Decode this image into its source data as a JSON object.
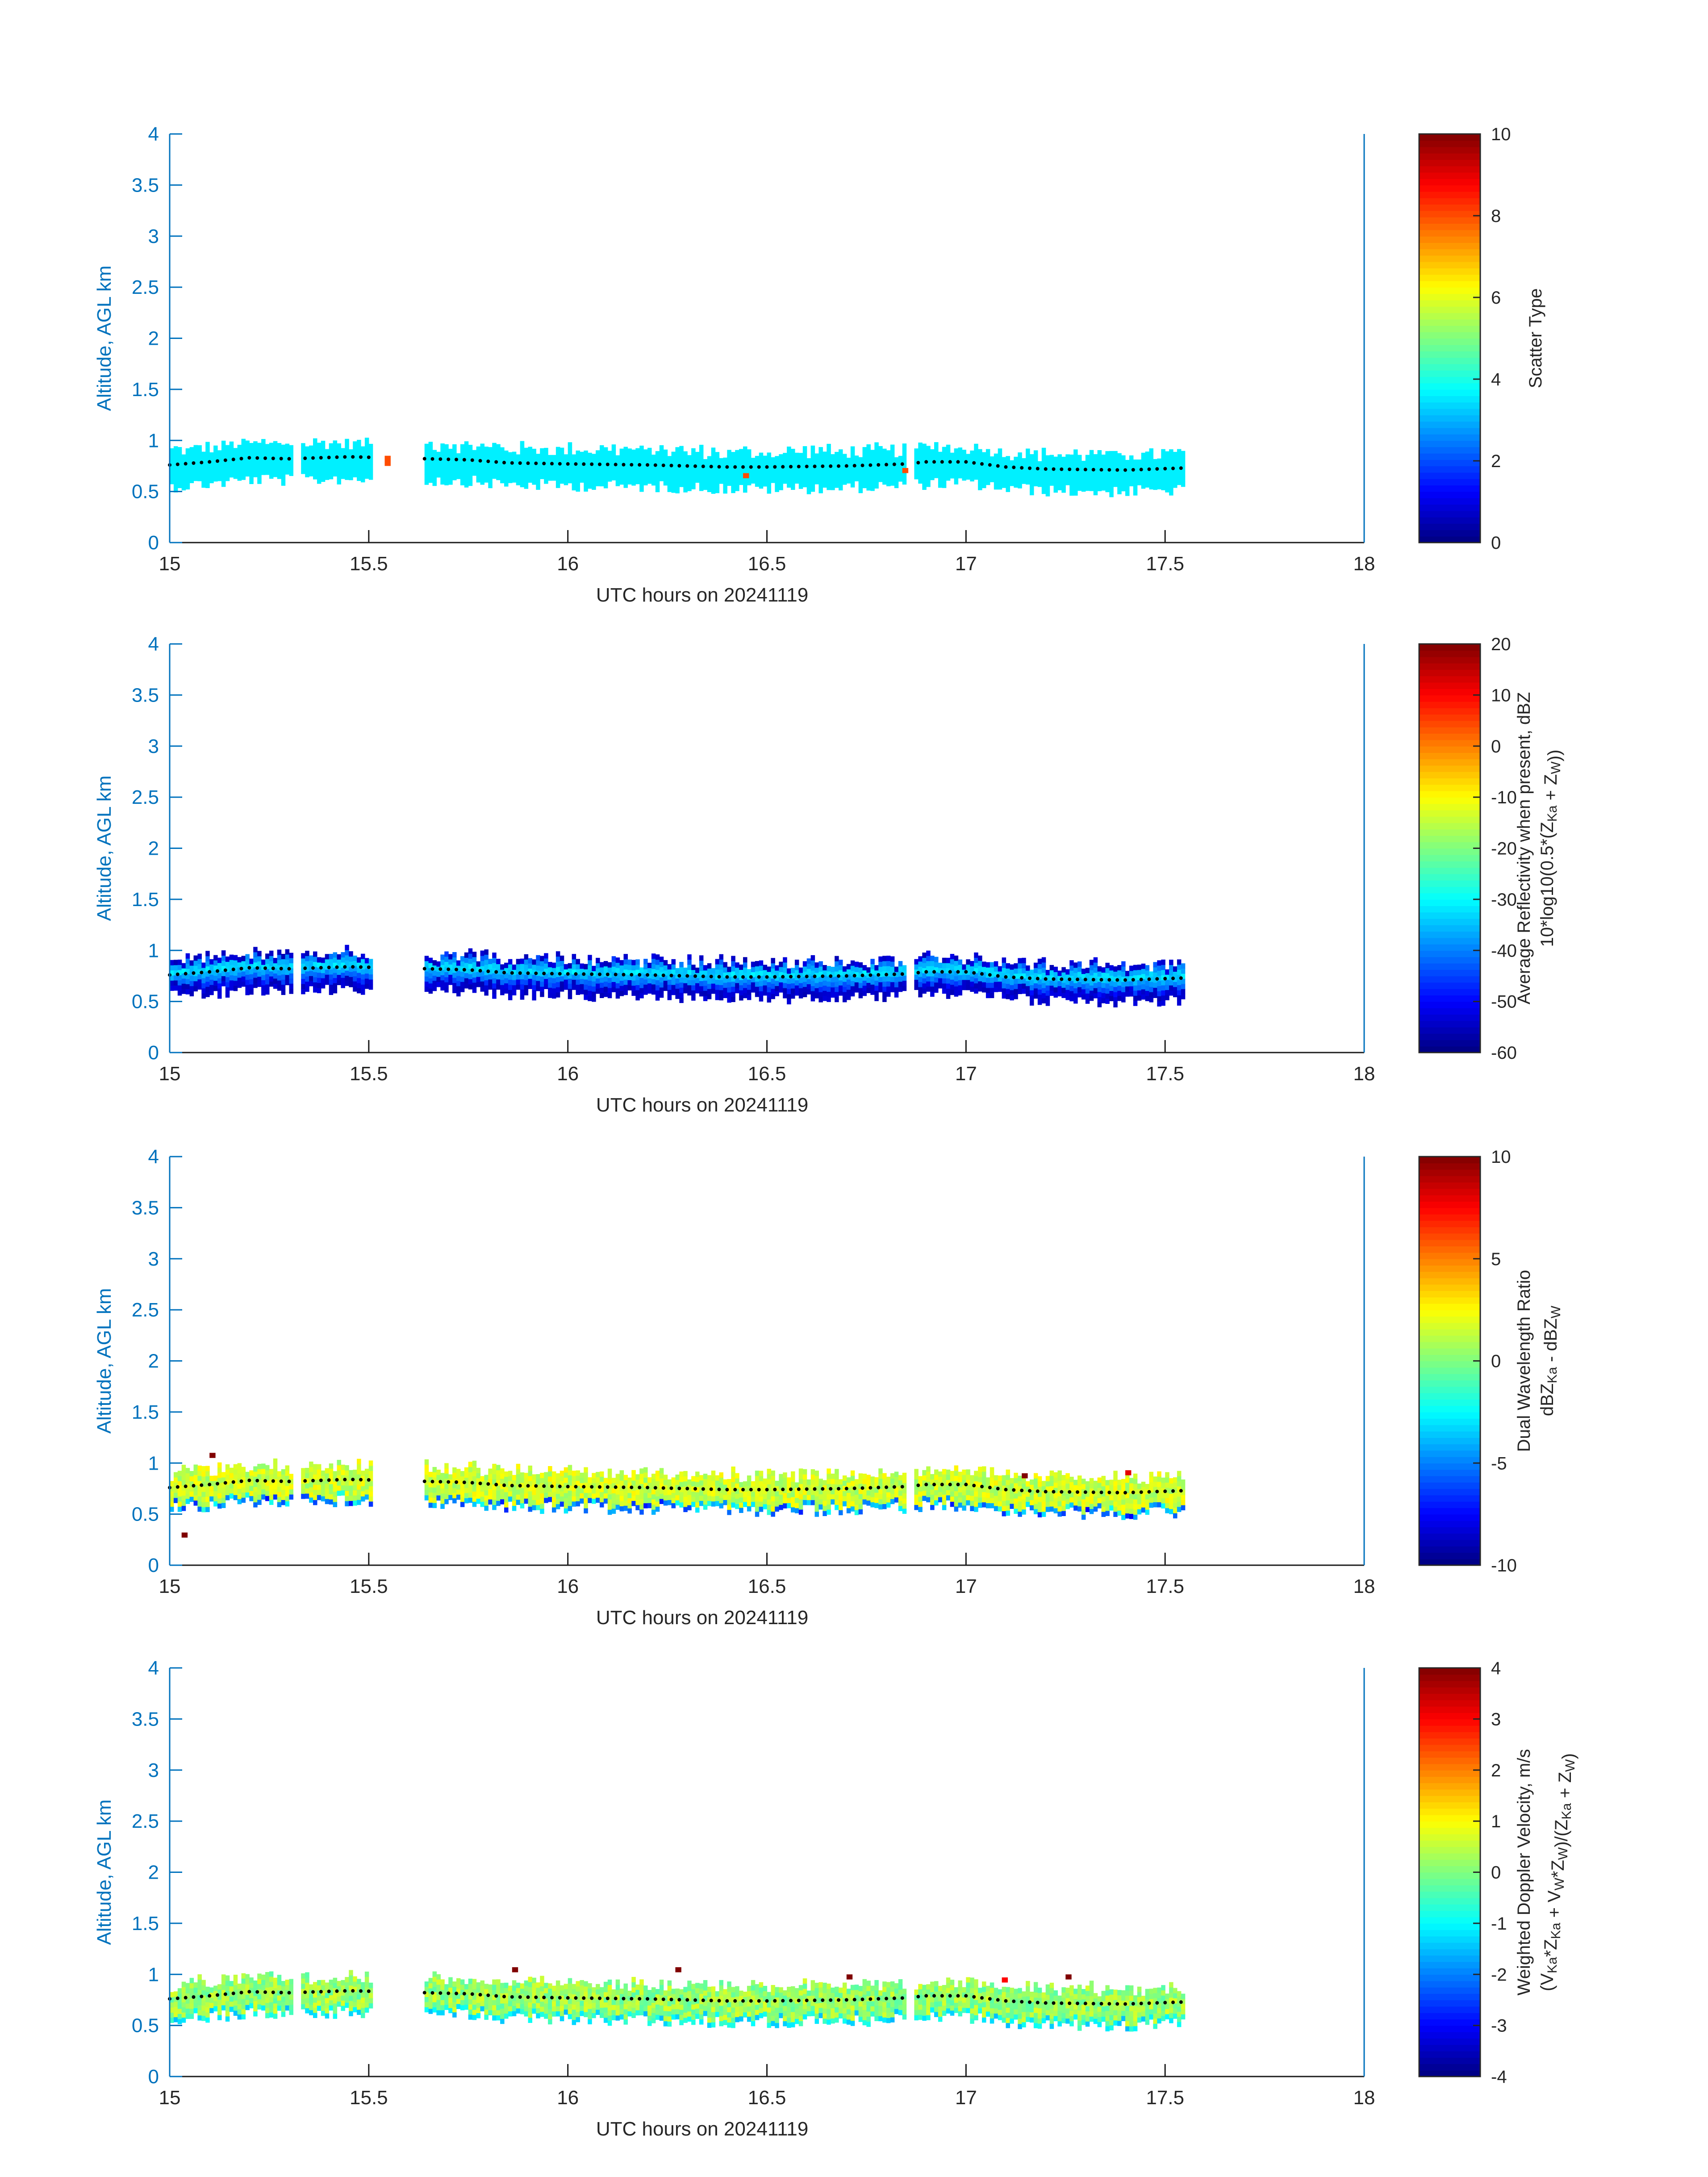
{
  "chart_data": [
    {
      "type": "heatmap",
      "xlabel": "UTC hours on 20241119",
      "ylabel": "Altitude, AGL km",
      "xlim": [
        15,
        18
      ],
      "ylim": [
        0,
        4
      ],
      "xticks": [
        "15",
        "15.5",
        "16",
        "16.5",
        "17",
        "17.5",
        "18"
      ],
      "yticks": [
        "0",
        "0.5",
        "1",
        "1.5",
        "2",
        "2.5",
        "3",
        "3.5",
        "4"
      ],
      "colorbar": {
        "label_lines": [
          "Scatter Type"
        ],
        "range": [
          0,
          10
        ],
        "ticks": [
          "0",
          "2",
          "4",
          "6",
          "8",
          "10"
        ],
        "colormap": "jet"
      },
      "field": "scatter_type",
      "typical_value": 3.6,
      "outliers": [
        {
          "x": 15.54,
          "y": 0.8,
          "value": 8
        },
        {
          "x": 15.54,
          "y": 0.75,
          "value": 8
        },
        {
          "x": 16.44,
          "y": 0.63,
          "value": 8
        },
        {
          "x": 16.84,
          "y": 0.68,
          "value": 8
        }
      ]
    },
    {
      "type": "heatmap",
      "xlabel": "UTC hours on 20241119",
      "ylabel": "Altitude, AGL km",
      "xlim": [
        15,
        18
      ],
      "ylim": [
        0,
        4
      ],
      "xticks": [
        "15",
        "15.5",
        "16",
        "16.5",
        "17",
        "17.5",
        "18"
      ],
      "yticks": [
        "0",
        "0.5",
        "1",
        "1.5",
        "2",
        "2.5",
        "3",
        "3.5",
        "4"
      ],
      "colorbar": {
        "label_lines": [
          "Average Reflectivity when present, dBZ",
          "10*log10(0.5*(Z<sub>Ka</sub> + Z<sub>W</sub>))"
        ],
        "range": [
          -60,
          20
        ],
        "ticks": [
          "-60",
          "-50",
          "-40",
          "-30",
          "-20",
          "-10",
          "0",
          "10",
          "20"
        ],
        "colormap": "jet"
      },
      "field": "reflectivity_dbz",
      "core_value": -34,
      "edge_value": -56
    },
    {
      "type": "heatmap",
      "xlabel": "UTC hours on 20241119",
      "ylabel": "Altitude, AGL km",
      "xlim": [
        15,
        18
      ],
      "ylim": [
        0,
        4
      ],
      "xticks": [
        "15",
        "15.5",
        "16",
        "16.5",
        "17",
        "17.5",
        "18"
      ],
      "yticks": [
        "0",
        "0.5",
        "1",
        "1.5",
        "2",
        "2.5",
        "3",
        "3.5",
        "4"
      ],
      "colorbar": {
        "label_lines": [
          "Dual Wavelength Ratio",
          "dBZ<sub>Ka</sub> - dBZ<sub>W</sub>"
        ],
        "range": [
          -10,
          10
        ],
        "ticks": [
          "-10",
          "-5",
          "0",
          "5",
          "10"
        ],
        "colormap": "jet"
      },
      "field": "dwr_db",
      "core_value": 1.5,
      "outliers": [
        {
          "x": 15.1,
          "y": 1.05,
          "value": 10
        },
        {
          "x": 15.03,
          "y": 0.27,
          "value": 10
        },
        {
          "x": 17.14,
          "y": 0.85,
          "value": 10
        },
        {
          "x": 17.4,
          "y": 0.88,
          "value": 8
        }
      ]
    },
    {
      "type": "heatmap",
      "xlabel": "UTC hours on 20241119",
      "ylabel": "Altitude, AGL km",
      "xlim": [
        15,
        18
      ],
      "ylim": [
        0,
        4
      ],
      "xticks": [
        "15",
        "15.5",
        "16",
        "16.5",
        "17",
        "17.5",
        "18"
      ],
      "yticks": [
        "0",
        "0.5",
        "1",
        "1.5",
        "2",
        "2.5",
        "3",
        "3.5",
        "4"
      ],
      "colorbar": {
        "label_lines": [
          "Weighted Doppler Velocity, m/s",
          "(V<sub>Ka</sub>*Z<sub>Ka</sub> + V<sub>W</sub>*Z<sub>W</sub>)/(Z<sub>Ka</sub> + Z<sub>W</sub>)"
        ],
        "range": [
          -4,
          4
        ],
        "ticks": [
          "-4",
          "-3",
          "-2",
          "-1",
          "0",
          "1",
          "2",
          "3",
          "4"
        ],
        "colormap": "jet"
      },
      "field": "doppler_velocity_ms",
      "core_value": 0.2,
      "outliers": [
        {
          "x": 15.86,
          "y": 1.02,
          "value": 4
        },
        {
          "x": 16.27,
          "y": 1.02,
          "value": 4
        },
        {
          "x": 16.7,
          "y": 0.95,
          "value": 4
        },
        {
          "x": 17.25,
          "y": 0.95,
          "value": 4
        },
        {
          "x": 17.09,
          "y": 0.92,
          "value": 3
        }
      ]
    }
  ],
  "shared": {
    "echo_segments": [
      [
        15.0,
        15.3
      ],
      [
        15.32,
        15.5
      ],
      [
        15.63,
        16.85
      ],
      [
        16.87,
        17.55
      ]
    ],
    "echo_top_km": 0.95,
    "echo_base_km": 0.55,
    "cloud_line_km": [
      [
        15.0,
        0.76
      ],
      [
        15.1,
        0.79
      ],
      [
        15.2,
        0.83
      ],
      [
        15.3,
        0.82
      ],
      [
        15.45,
        0.84
      ],
      [
        15.65,
        0.82
      ],
      [
        15.75,
        0.81
      ],
      [
        15.85,
        0.78
      ],
      [
        16.0,
        0.77
      ],
      [
        16.2,
        0.76
      ],
      [
        16.4,
        0.74
      ],
      [
        16.5,
        0.74
      ],
      [
        16.7,
        0.75
      ],
      [
        16.85,
        0.77
      ],
      [
        16.9,
        0.79
      ],
      [
        17.0,
        0.79
      ],
      [
        17.1,
        0.74
      ],
      [
        17.2,
        0.72
      ],
      [
        17.4,
        0.71
      ],
      [
        17.55,
        0.73
      ]
    ]
  }
}
